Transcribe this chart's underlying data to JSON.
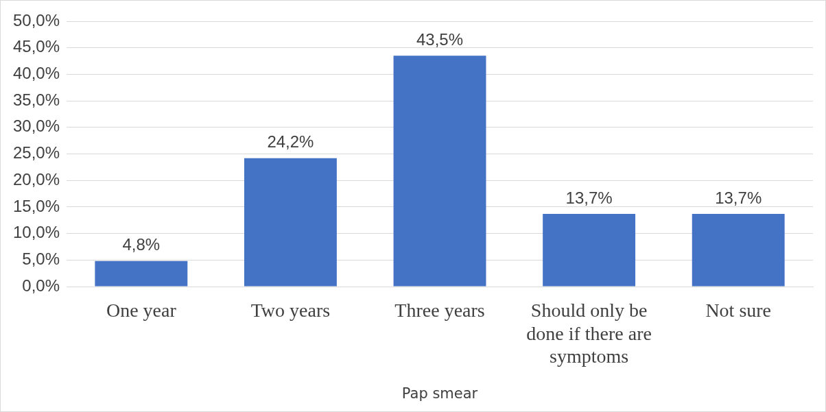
{
  "chart_data": {
    "type": "bar",
    "xlabel": "Pap smear",
    "categories": [
      "One year",
      "Two years",
      "Three years",
      "Should only be done if there are symptoms",
      "Not sure"
    ],
    "values": [
      4.8,
      24.2,
      43.5,
      13.7,
      13.7
    ],
    "value_labels": [
      "4,8%",
      "24,2%",
      "43,5%",
      "13,7%",
      "13,7%"
    ],
    "color": "#4472c4",
    "ylim": [
      0,
      50
    ],
    "yticks": [
      {
        "value": 0,
        "label": "0,0%"
      },
      {
        "value": 5,
        "label": "5,0%"
      },
      {
        "value": 10,
        "label": "10,0%"
      },
      {
        "value": 15,
        "label": "15,0%"
      },
      {
        "value": 20,
        "label": "20,0%"
      },
      {
        "value": 25,
        "label": "25,0%"
      },
      {
        "value": 30,
        "label": "30,0%"
      },
      {
        "value": 35,
        "label": "35,0%"
      },
      {
        "value": 40,
        "label": "40,0%"
      },
      {
        "value": 45,
        "label": "45,0%"
      },
      {
        "value": 50,
        "label": "50,0%"
      }
    ],
    "grid": "y"
  }
}
